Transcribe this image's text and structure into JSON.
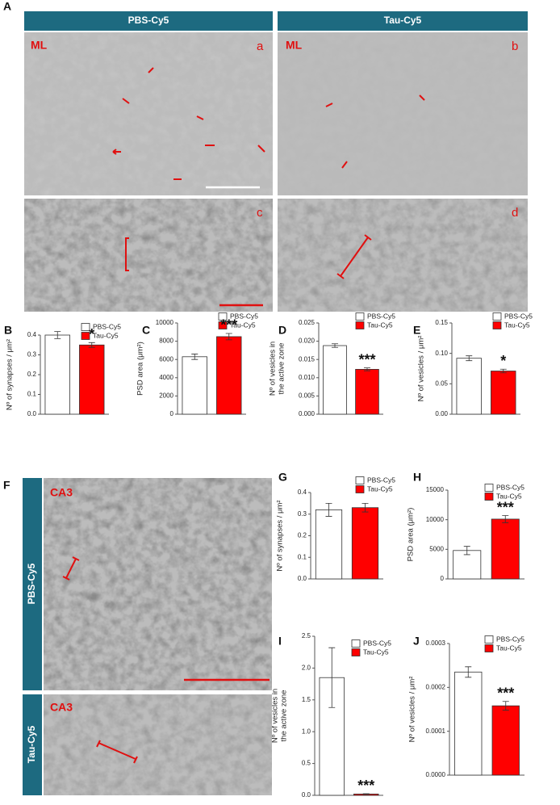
{
  "figure": {
    "panel_letters": [
      "A",
      "F"
    ],
    "columns": [
      "PBS-Cy5",
      "Tau-Cy5"
    ],
    "rows": [
      "PBS-Cy5",
      "Tau-Cy5"
    ],
    "images": [
      {
        "region": "ML",
        "tag": "a"
      },
      {
        "region": "ML",
        "tag": "b"
      },
      {
        "tag": "c"
      },
      {
        "tag": "d"
      },
      {
        "region": "CA3"
      },
      {
        "region": "CA3"
      }
    ]
  },
  "chart_data": [
    {
      "type": "bar",
      "panel": "B",
      "ylabel": [
        "Nº of synapses / μm²"
      ],
      "ylim": [
        0,
        0.4
      ],
      "yticks": [
        {
          "value": 0,
          "label": "0.0"
        },
        0.1,
        0.2,
        0.3,
        0.4
      ],
      "annotation": "*",
      "series": [
        {
          "name": "PBS-Cy5",
          "color": "#ffffff",
          "values": [
            0.4
          ],
          "errors": [
            0.018
          ]
        },
        {
          "name": "Tau-Cy5",
          "color": "#ff0000",
          "values": [
            0.35
          ],
          "errors": [
            0.012
          ]
        }
      ]
    },
    {
      "type": "bar",
      "panel": "C",
      "ylabel": [
        "PSD area (μm²)"
      ],
      "ylim": [
        0,
        10000
      ],
      "yticks": [
        0,
        2000,
        4000,
        6000,
        8000,
        10000
      ],
      "annotation": "***",
      "series": [
        {
          "name": "PBS-Cy5",
          "color": "#ffffff",
          "values": [
            6300
          ],
          "errors": [
            300
          ]
        },
        {
          "name": "Tau-Cy5",
          "color": "#ff0000",
          "values": [
            8500
          ],
          "errors": [
            350
          ]
        }
      ]
    },
    {
      "type": "bar",
      "panel": "D",
      "ylabel": [
        "Nº of vesicles in",
        "the active zone"
      ],
      "ylim": [
        0,
        0.025
      ],
      "yticks": [
        {
          "value": 0,
          "label": "0.000"
        },
        {
          "value": 0.005,
          "label": "0.005"
        },
        {
          "value": 0.01,
          "label": "0.010"
        },
        {
          "value": 0.015,
          "label": "0.015"
        },
        {
          "value": 0.02,
          "label": "0.020"
        },
        {
          "value": 0.025,
          "label": "0.025"
        }
      ],
      "annotation": "***",
      "series": [
        {
          "name": "PBS-Cy5",
          "color": "#ffffff",
          "values": [
            0.0188
          ],
          "errors": [
            0.0005
          ]
        },
        {
          "name": "Tau-Cy5",
          "color": "#ff0000",
          "values": [
            0.0123
          ],
          "errors": [
            0.0004
          ]
        }
      ]
    },
    {
      "type": "bar",
      "panel": "E",
      "ylabel": [
        "Nº of vesicles / μm²"
      ],
      "ylim": [
        0,
        0.15
      ],
      "yticks": [
        {
          "value": 0,
          "label": "0.00"
        },
        {
          "value": 0.05,
          "label": "0.05"
        },
        {
          "value": 0.1,
          "label": "0.10"
        },
        {
          "value": 0.15,
          "label": "0.15"
        }
      ],
      "annotation": "*",
      "series": [
        {
          "name": "PBS-Cy5",
          "color": "#ffffff",
          "values": [
            0.092
          ],
          "errors": [
            0.004
          ]
        },
        {
          "name": "Tau-Cy5",
          "color": "#ff0000",
          "values": [
            0.071
          ],
          "errors": [
            0.003
          ]
        }
      ]
    },
    {
      "type": "bar",
      "panel": "G",
      "ylabel": [
        "Nº of synapses / μm²"
      ],
      "ylim": [
        0,
        0.4
      ],
      "yticks": [
        {
          "value": 0,
          "label": "0.0"
        },
        0.1,
        0.2,
        0.3,
        0.4
      ],
      "series": [
        {
          "name": "PBS-Cy5",
          "color": "#ffffff",
          "values": [
            0.32
          ],
          "errors": [
            0.03
          ]
        },
        {
          "name": "Tau-Cy5",
          "color": "#ff0000",
          "values": [
            0.33
          ],
          "errors": [
            0.02
          ]
        }
      ]
    },
    {
      "type": "bar",
      "panel": "H",
      "ylabel": [
        "PSD area (μm²)"
      ],
      "ylim": [
        0,
        15000
      ],
      "yticks": [
        0,
        5000,
        10000,
        15000
      ],
      "annotation": "***",
      "series": [
        {
          "name": "PBS-Cy5",
          "color": "#ffffff",
          "values": [
            4800
          ],
          "errors": [
            700
          ]
        },
        {
          "name": "Tau-Cy5",
          "color": "#ff0000",
          "values": [
            10100
          ],
          "errors": [
            600
          ]
        }
      ]
    },
    {
      "type": "bar",
      "panel": "I",
      "ylabel": [
        "Nº of vesicles in",
        "the active zone"
      ],
      "ylim": [
        0,
        2.5
      ],
      "yticks": [
        {
          "value": 0,
          "label": "0.0"
        },
        0.5,
        {
          "value": 1,
          "label": "1.0"
        },
        1.5,
        {
          "value": 2,
          "label": "2.0"
        },
        2.5
      ],
      "annotation": "***",
      "series": [
        {
          "name": "PBS-Cy5",
          "color": "#ffffff",
          "values": [
            1.85
          ],
          "errors": [
            0.47
          ]
        },
        {
          "name": "Tau-Cy5",
          "color": "#ff0000",
          "values": [
            0.02
          ],
          "errors": [
            0.005
          ]
        }
      ]
    },
    {
      "type": "bar",
      "panel": "J",
      "ylabel": [
        "Nº of vesicles / μm²"
      ],
      "ylim": [
        0,
        0.0003
      ],
      "yticks": [
        {
          "value": 0,
          "label": "0.0000"
        },
        {
          "value": 0.0001,
          "label": "0.0001"
        },
        {
          "value": 0.0002,
          "label": "0.0002"
        },
        {
          "value": 0.0003,
          "label": "0.0003"
        }
      ],
      "annotation": "***",
      "series": [
        {
          "name": "PBS-Cy5",
          "color": "#ffffff",
          "values": [
            0.000235
          ],
          "errors": [
            1.2e-05
          ]
        },
        {
          "name": "Tau-Cy5",
          "color": "#ff0000",
          "values": [
            0.000158
          ],
          "errors": [
            1e-05
          ]
        }
      ]
    }
  ]
}
